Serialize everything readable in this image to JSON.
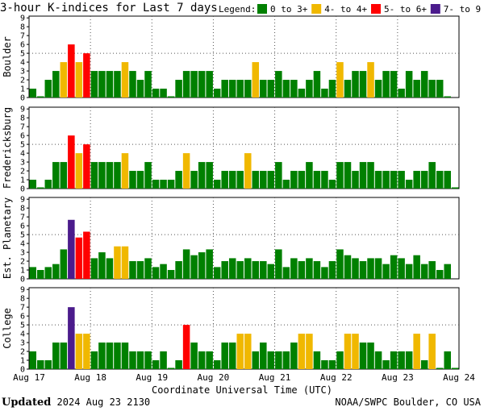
{
  "title": "3-hour K-indices for Last 7 days",
  "legend": {
    "label": "Legend:",
    "items": [
      {
        "label": "0 to 3+",
        "color": "#008000"
      },
      {
        "label": "4- to 4+",
        "color": "#f0b800"
      },
      {
        "label": "5- to 6+",
        "color": "#ff0000"
      },
      {
        "label": "7- to 9",
        "color": "#4b1b8c"
      }
    ]
  },
  "footer": {
    "updated_label": "Updated",
    "updated_value": "2024 Aug 23 2130",
    "source": "NOAA/SWPC Boulder, CO USA"
  },
  "chart_data": [
    {
      "type": "bar",
      "station": "Boulder",
      "ylim": [
        0,
        9
      ],
      "yticks": [
        "0",
        "1",
        "2",
        "3",
        "4",
        "5",
        "6",
        "7",
        "8",
        "9"
      ],
      "x_tick_labels": [
        "Aug 17",
        "Aug 18",
        "Aug 19",
        "Aug 20",
        "Aug 21",
        "Aug 22",
        "Aug 23",
        "Aug 24"
      ],
      "xlabel": "Coordinate Universal Time (UTC)",
      "values": [
        1,
        0,
        2,
        3,
        4,
        6,
        4,
        5,
        3,
        3,
        3,
        3,
        4,
        3,
        2,
        3,
        1,
        1,
        0,
        2,
        3,
        3,
        3,
        3,
        1,
        2,
        2,
        2,
        2,
        4,
        2,
        2,
        3,
        2,
        2,
        1,
        2,
        3,
        1,
        2,
        4,
        2,
        3,
        3,
        4,
        2,
        3,
        3,
        1,
        3,
        2,
        3,
        2,
        2,
        0
      ]
    },
    {
      "type": "bar",
      "station": "Fredericksburg",
      "ylim": [
        0,
        9
      ],
      "yticks": [
        "0",
        "1",
        "2",
        "3",
        "4",
        "5",
        "6",
        "7",
        "8",
        "9"
      ],
      "x_tick_labels": [
        "Aug 17",
        "Aug 18",
        "Aug 19",
        "Aug 20",
        "Aug 21",
        "Aug 22",
        "Aug 23",
        "Aug 24"
      ],
      "xlabel": "Coordinate Universal Time (UTC)",
      "values": [
        1,
        0,
        1,
        3,
        3,
        6,
        4,
        5,
        3,
        3,
        3,
        3,
        4,
        2,
        2,
        3,
        1,
        1,
        1,
        2,
        4,
        2,
        3,
        3,
        1,
        2,
        2,
        2,
        4,
        2,
        2,
        2,
        3,
        1,
        2,
        2,
        3,
        2,
        2,
        1,
        3,
        3,
        2,
        3,
        3,
        2,
        2,
        2,
        2,
        1,
        2,
        2,
        3,
        2,
        2,
        0
      ]
    },
    {
      "type": "bar",
      "station": "Est. Planetary",
      "ylim": [
        0,
        9
      ],
      "yticks": [
        "0",
        "1",
        "2",
        "3",
        "4",
        "5",
        "6",
        "7",
        "8",
        "9"
      ],
      "x_tick_labels": [
        "Aug 17",
        "Aug 18",
        "Aug 19",
        "Aug 20",
        "Aug 21",
        "Aug 22",
        "Aug 23",
        "Aug 24"
      ],
      "xlabel": "Coordinate Universal Time (UTC)",
      "values": [
        1.33,
        1,
        1.33,
        1.67,
        3.33,
        6.67,
        4.67,
        5.33,
        2.33,
        3,
        2.33,
        3.67,
        3.67,
        2,
        2,
        2.33,
        1.33,
        1.67,
        1,
        2,
        3.33,
        2.67,
        3,
        3.33,
        1.33,
        2,
        2.33,
        2,
        2.33,
        2,
        2,
        1.67,
        3.33,
        1.33,
        2.33,
        2,
        2.33,
        2,
        1.33,
        2,
        3.33,
        2.67,
        2.33,
        2,
        2.33,
        2.33,
        1.67,
        2.67,
        2.33,
        1.67,
        2.67,
        1.67,
        2,
        1,
        1.67
      ]
    },
    {
      "type": "bar",
      "station": "College",
      "ylim": [
        0,
        9
      ],
      "yticks": [
        "0",
        "1",
        "2",
        "3",
        "4",
        "5",
        "6",
        "7",
        "8",
        "9"
      ],
      "x_tick_labels": [
        "Aug 17",
        "Aug 18",
        "Aug 19",
        "Aug 20",
        "Aug 21",
        "Aug 22",
        "Aug 23",
        "Aug 24"
      ],
      "xlabel": "Coordinate Universal Time (UTC)",
      "values": [
        2,
        1,
        1,
        3,
        3,
        7,
        4,
        4,
        2,
        3,
        3,
        3,
        3,
        2,
        2,
        2,
        1,
        2,
        0,
        1,
        5,
        3,
        2,
        2,
        1,
        3,
        3,
        4,
        4,
        2,
        3,
        2,
        2,
        2,
        3,
        4,
        4,
        2,
        1,
        1,
        2,
        4,
        4,
        3,
        3,
        2,
        1,
        2,
        2,
        2,
        4,
        1,
        4,
        0,
        2,
        0
      ]
    }
  ]
}
